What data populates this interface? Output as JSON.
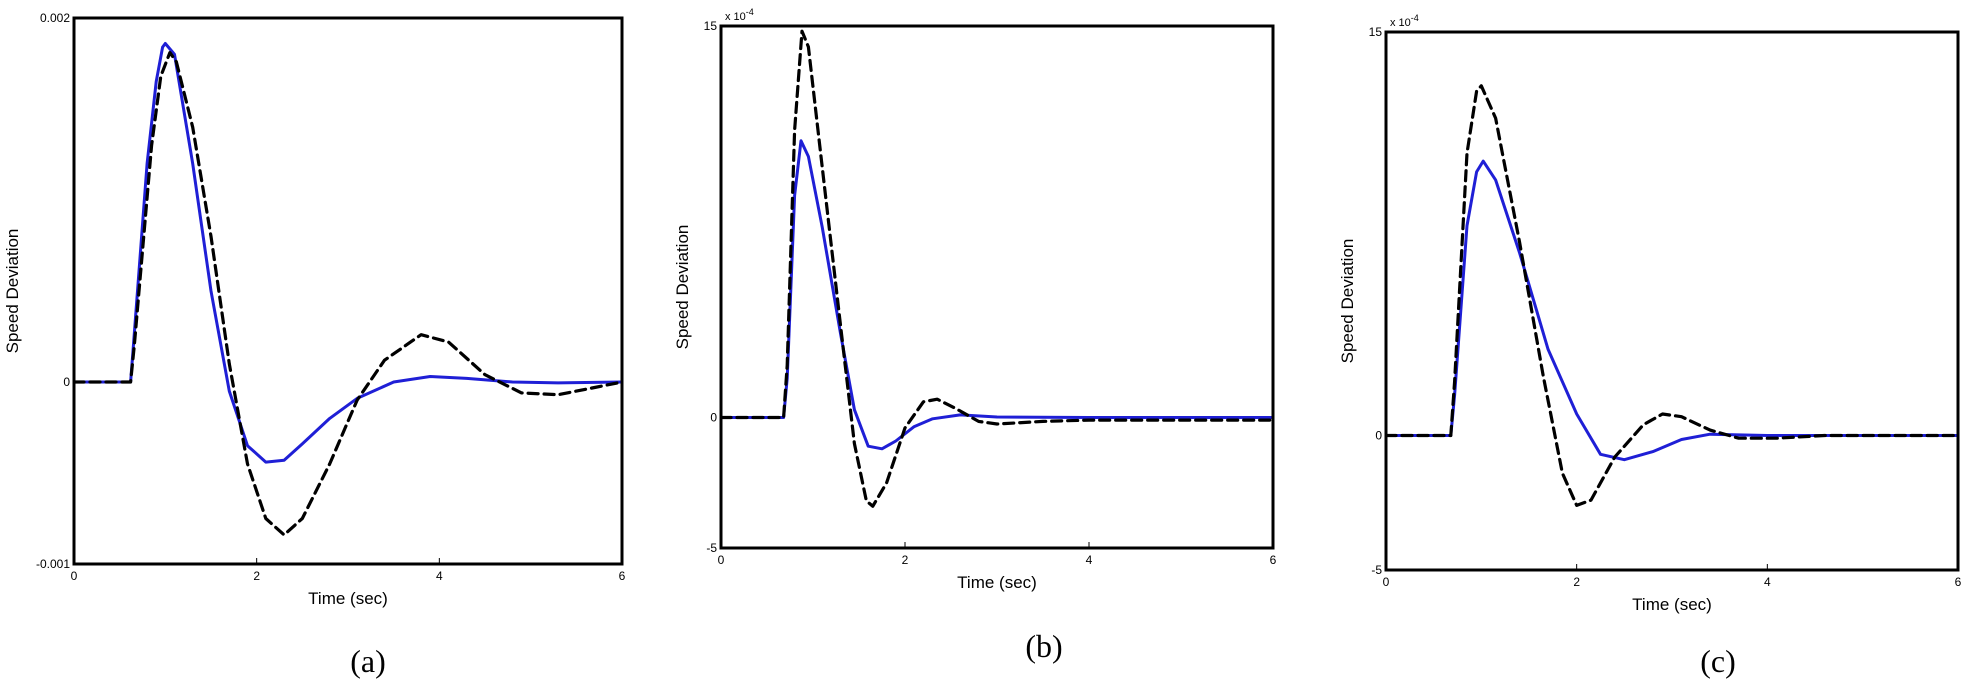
{
  "colors": {
    "solid_series": "#1f1fd6",
    "dashed_series": "#000000",
    "frame": "#000000",
    "background": "#ffffff"
  },
  "chart_data": [
    {
      "type": "line",
      "panel_label": "(a)",
      "xlabel": "Time (sec)",
      "ylabel": "Speed Deviation",
      "xlim": [
        0,
        6
      ],
      "ylim": [
        -0.001,
        0.002
      ],
      "x_ticks": [
        "0",
        "2",
        "4",
        "6"
      ],
      "y_ticks": [
        "-0.001",
        "0",
        "0.002"
      ],
      "y_tick_values": [
        -0.001,
        0,
        0.002
      ],
      "y_exponent_label": "",
      "grid": false,
      "series": [
        {
          "style": "solid",
          "points": [
            [
              0,
              0
            ],
            [
              0.62,
              0
            ],
            [
              0.65,
              0.0002
            ],
            [
              0.8,
              0.0012
            ],
            [
              0.9,
              0.00165
            ],
            [
              0.97,
              0.00184
            ],
            [
              1.0,
              0.00186
            ],
            [
              1.1,
              0.0018
            ],
            [
              1.3,
              0.0012
            ],
            [
              1.5,
              0.0005
            ],
            [
              1.7,
              -5e-05
            ],
            [
              1.9,
              -0.00035
            ],
            [
              2.1,
              -0.00044
            ],
            [
              2.3,
              -0.00043
            ],
            [
              2.5,
              -0.00034
            ],
            [
              2.8,
              -0.0002
            ],
            [
              3.1,
              -9e-05
            ],
            [
              3.5,
              0.0
            ],
            [
              3.9,
              3e-05
            ],
            [
              4.3,
              2e-05
            ],
            [
              4.8,
              0.0
            ],
            [
              5.3,
              -5e-06
            ],
            [
              6,
              0.0
            ]
          ]
        },
        {
          "style": "dashed",
          "points": [
            [
              0,
              0
            ],
            [
              0.62,
              0
            ],
            [
              0.66,
              0.0002
            ],
            [
              0.85,
              0.0013
            ],
            [
              0.95,
              0.00168
            ],
            [
              1.05,
              0.00181
            ],
            [
              1.12,
              0.00176
            ],
            [
              1.3,
              0.0014
            ],
            [
              1.5,
              0.0008
            ],
            [
              1.7,
              0.0001
            ],
            [
              1.9,
              -0.00045
            ],
            [
              2.1,
              -0.00075
            ],
            [
              2.3,
              -0.00084
            ],
            [
              2.5,
              -0.00075
            ],
            [
              2.8,
              -0.00045
            ],
            [
              3.1,
              -0.0001
            ],
            [
              3.4,
              0.00012
            ],
            [
              3.8,
              0.00026
            ],
            [
              4.1,
              0.00022
            ],
            [
              4.5,
              4e-05
            ],
            [
              4.9,
              -6e-05
            ],
            [
              5.3,
              -7e-05
            ],
            [
              5.7,
              -3e-05
            ],
            [
              6,
              0.0
            ]
          ]
        }
      ]
    },
    {
      "type": "line",
      "panel_label": "(b)",
      "xlabel": "Time (sec)",
      "ylabel": "Speed Deviation",
      "xlim": [
        0,
        6
      ],
      "ylim": [
        -5,
        15
      ],
      "x_ticks": [
        "0",
        "2",
        "4",
        "6"
      ],
      "y_ticks": [
        "-5",
        "0",
        "15"
      ],
      "y_tick_values": [
        -5,
        0,
        15
      ],
      "y_exponent_label": "x 10",
      "y_exponent_power": "-4",
      "grid": false,
      "series": [
        {
          "style": "solid",
          "points": [
            [
              0,
              0
            ],
            [
              0.68,
              0
            ],
            [
              0.72,
              1.5
            ],
            [
              0.8,
              8.5
            ],
            [
              0.87,
              10.6
            ],
            [
              0.95,
              10.0
            ],
            [
              1.1,
              7.3
            ],
            [
              1.3,
              3.2
            ],
            [
              1.45,
              0.3
            ],
            [
              1.6,
              -1.1
            ],
            [
              1.75,
              -1.2
            ],
            [
              1.9,
              -0.9
            ],
            [
              2.1,
              -0.35
            ],
            [
              2.3,
              -0.05
            ],
            [
              2.6,
              0.1
            ],
            [
              3.0,
              0.02
            ],
            [
              4,
              0
            ],
            [
              6,
              0
            ]
          ]
        },
        {
          "style": "dashed",
          "points": [
            [
              0,
              0
            ],
            [
              0.68,
              0
            ],
            [
              0.72,
              2
            ],
            [
              0.8,
              11.0
            ],
            [
              0.88,
              14.8
            ],
            [
              0.95,
              14.2
            ],
            [
              1.1,
              9.6
            ],
            [
              1.3,
              3.5
            ],
            [
              1.45,
              -1.0
            ],
            [
              1.58,
              -3.2
            ],
            [
              1.65,
              -3.4
            ],
            [
              1.8,
              -2.5
            ],
            [
              2.0,
              -0.4
            ],
            [
              2.2,
              0.6
            ],
            [
              2.35,
              0.7
            ],
            [
              2.55,
              0.35
            ],
            [
              2.8,
              -0.15
            ],
            [
              3.0,
              -0.25
            ],
            [
              3.5,
              -0.15
            ],
            [
              4,
              -0.1
            ],
            [
              6,
              -0.1
            ]
          ]
        }
      ]
    },
    {
      "type": "line",
      "panel_label": "(c)",
      "xlabel": "Time (sec)",
      "ylabel": "Speed Deviation",
      "xlim": [
        0,
        6
      ],
      "ylim": [
        -5,
        15
      ],
      "x_ticks": [
        "0",
        "2",
        "4",
        "6"
      ],
      "y_ticks": [
        "-5",
        "0",
        "15"
      ],
      "y_tick_values": [
        -5,
        0,
        15
      ],
      "y_exponent_label": "x 10",
      "y_exponent_power": "-4",
      "grid": false,
      "series": [
        {
          "style": "solid",
          "points": [
            [
              0,
              0
            ],
            [
              0.68,
              0
            ],
            [
              0.72,
              1.5
            ],
            [
              0.85,
              7.8
            ],
            [
              0.95,
              9.8
            ],
            [
              1.02,
              10.2
            ],
            [
              1.15,
              9.5
            ],
            [
              1.4,
              6.8
            ],
            [
              1.7,
              3.2
            ],
            [
              2.0,
              0.8
            ],
            [
              2.25,
              -0.7
            ],
            [
              2.5,
              -0.9
            ],
            [
              2.8,
              -0.6
            ],
            [
              3.1,
              -0.15
            ],
            [
              3.4,
              0.05
            ],
            [
              4,
              0
            ],
            [
              6,
              0
            ]
          ]
        },
        {
          "style": "dashed",
          "points": [
            [
              0,
              0
            ],
            [
              0.68,
              0
            ],
            [
              0.72,
              2
            ],
            [
              0.85,
              10.5
            ],
            [
              0.95,
              12.8
            ],
            [
              1.0,
              13.0
            ],
            [
              1.15,
              11.8
            ],
            [
              1.4,
              7.2
            ],
            [
              1.65,
              2.2
            ],
            [
              1.85,
              -1.4
            ],
            [
              2.0,
              -2.6
            ],
            [
              2.15,
              -2.4
            ],
            [
              2.4,
              -0.8
            ],
            [
              2.7,
              0.4
            ],
            [
              2.9,
              0.8
            ],
            [
              3.1,
              0.7
            ],
            [
              3.4,
              0.2
            ],
            [
              3.7,
              -0.1
            ],
            [
              4.1,
              -0.1
            ],
            [
              4.6,
              0
            ],
            [
              6,
              0
            ]
          ]
        }
      ]
    }
  ]
}
